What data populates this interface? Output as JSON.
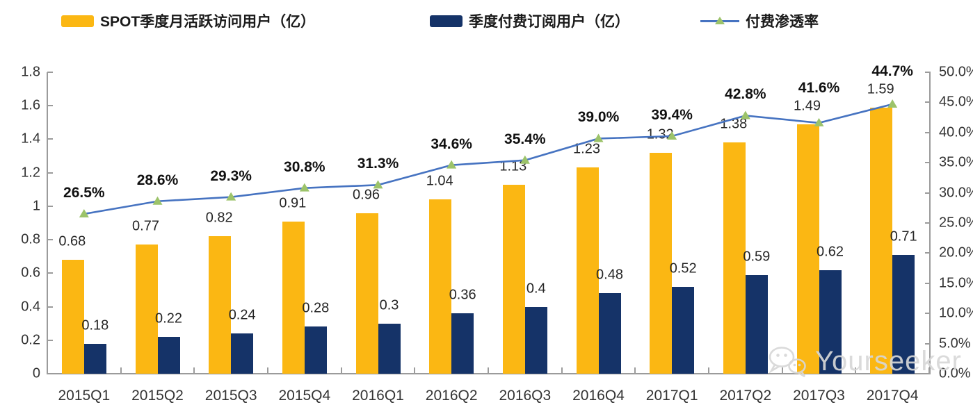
{
  "legend": {
    "items": [
      {
        "label": "SPOT季度月活跃访问用户（亿）",
        "type": "bar",
        "color": "#FBB713"
      },
      {
        "label": "季度付费订阅用户（亿）",
        "type": "bar",
        "color": "#153368"
      },
      {
        "label": "付费渗透率",
        "type": "line",
        "color": "#4673C1",
        "marker_color": "#9CC36A"
      }
    ]
  },
  "chart_data": {
    "type": "combo-bar-line",
    "categories": [
      "2015Q1",
      "2015Q2",
      "2015Q3",
      "2015Q4",
      "2016Q1",
      "2016Q2",
      "2016Q3",
      "2016Q4",
      "2017Q1",
      "2017Q2",
      "2017Q3",
      "2017Q4"
    ],
    "series": [
      {
        "name": "SPOT季度月活跃访问用户（亿）",
        "type": "bar",
        "axis": "left",
        "color": "#FBB713",
        "values": [
          0.68,
          0.77,
          0.82,
          0.91,
          0.96,
          1.04,
          1.13,
          1.23,
          1.32,
          1.38,
          1.49,
          1.59
        ],
        "labels": [
          "0.68",
          "0.77",
          "0.82",
          "0.91",
          "0.96",
          "1.04",
          "1.13",
          "1.23",
          "1.32",
          "1.38",
          "1.49",
          "1.59"
        ]
      },
      {
        "name": "季度付费订阅用户（亿）",
        "type": "bar",
        "axis": "left",
        "color": "#153368",
        "values": [
          0.18,
          0.22,
          0.24,
          0.28,
          0.3,
          0.36,
          0.4,
          0.48,
          0.52,
          0.59,
          0.62,
          0.71
        ],
        "labels": [
          "0.18",
          "0.22",
          "0.24",
          "0.28",
          "0.3",
          "0.36",
          "0.4",
          "0.48",
          "0.52",
          "0.59",
          "0.62",
          "0.71"
        ]
      },
      {
        "name": "付费渗透率",
        "type": "line",
        "axis": "right",
        "color": "#4673C1",
        "marker": "triangle",
        "marker_color": "#9CC36A",
        "values": [
          26.5,
          28.6,
          29.3,
          30.8,
          31.3,
          34.6,
          35.4,
          39.0,
          39.4,
          42.8,
          41.6,
          44.7
        ],
        "labels": [
          "26.5%",
          "28.6%",
          "29.3%",
          "30.8%",
          "31.3%",
          "34.6%",
          "35.4%",
          "39.0%",
          "39.4%",
          "42.8%",
          "41.6%",
          "44.7%"
        ]
      }
    ],
    "left_axis": {
      "min": 0,
      "max": 1.8,
      "ticks": [
        "1.8",
        "1.6",
        "1.4",
        "1.2",
        "1",
        "0.8",
        "0.6",
        "0.4",
        "0.2",
        "0"
      ]
    },
    "right_axis": {
      "min": 0,
      "max": 50,
      "ticks": [
        "50.0%",
        "45.0%",
        "40.0%",
        "35.0%",
        "30.0%",
        "25.0%",
        "20.0%",
        "15.0%",
        "10.0%",
        "5.0%",
        "0.0%"
      ]
    },
    "grid": false,
    "legend_position": "top"
  },
  "watermark": {
    "text": "Yourseeker",
    "icon": "wechat-icon"
  }
}
